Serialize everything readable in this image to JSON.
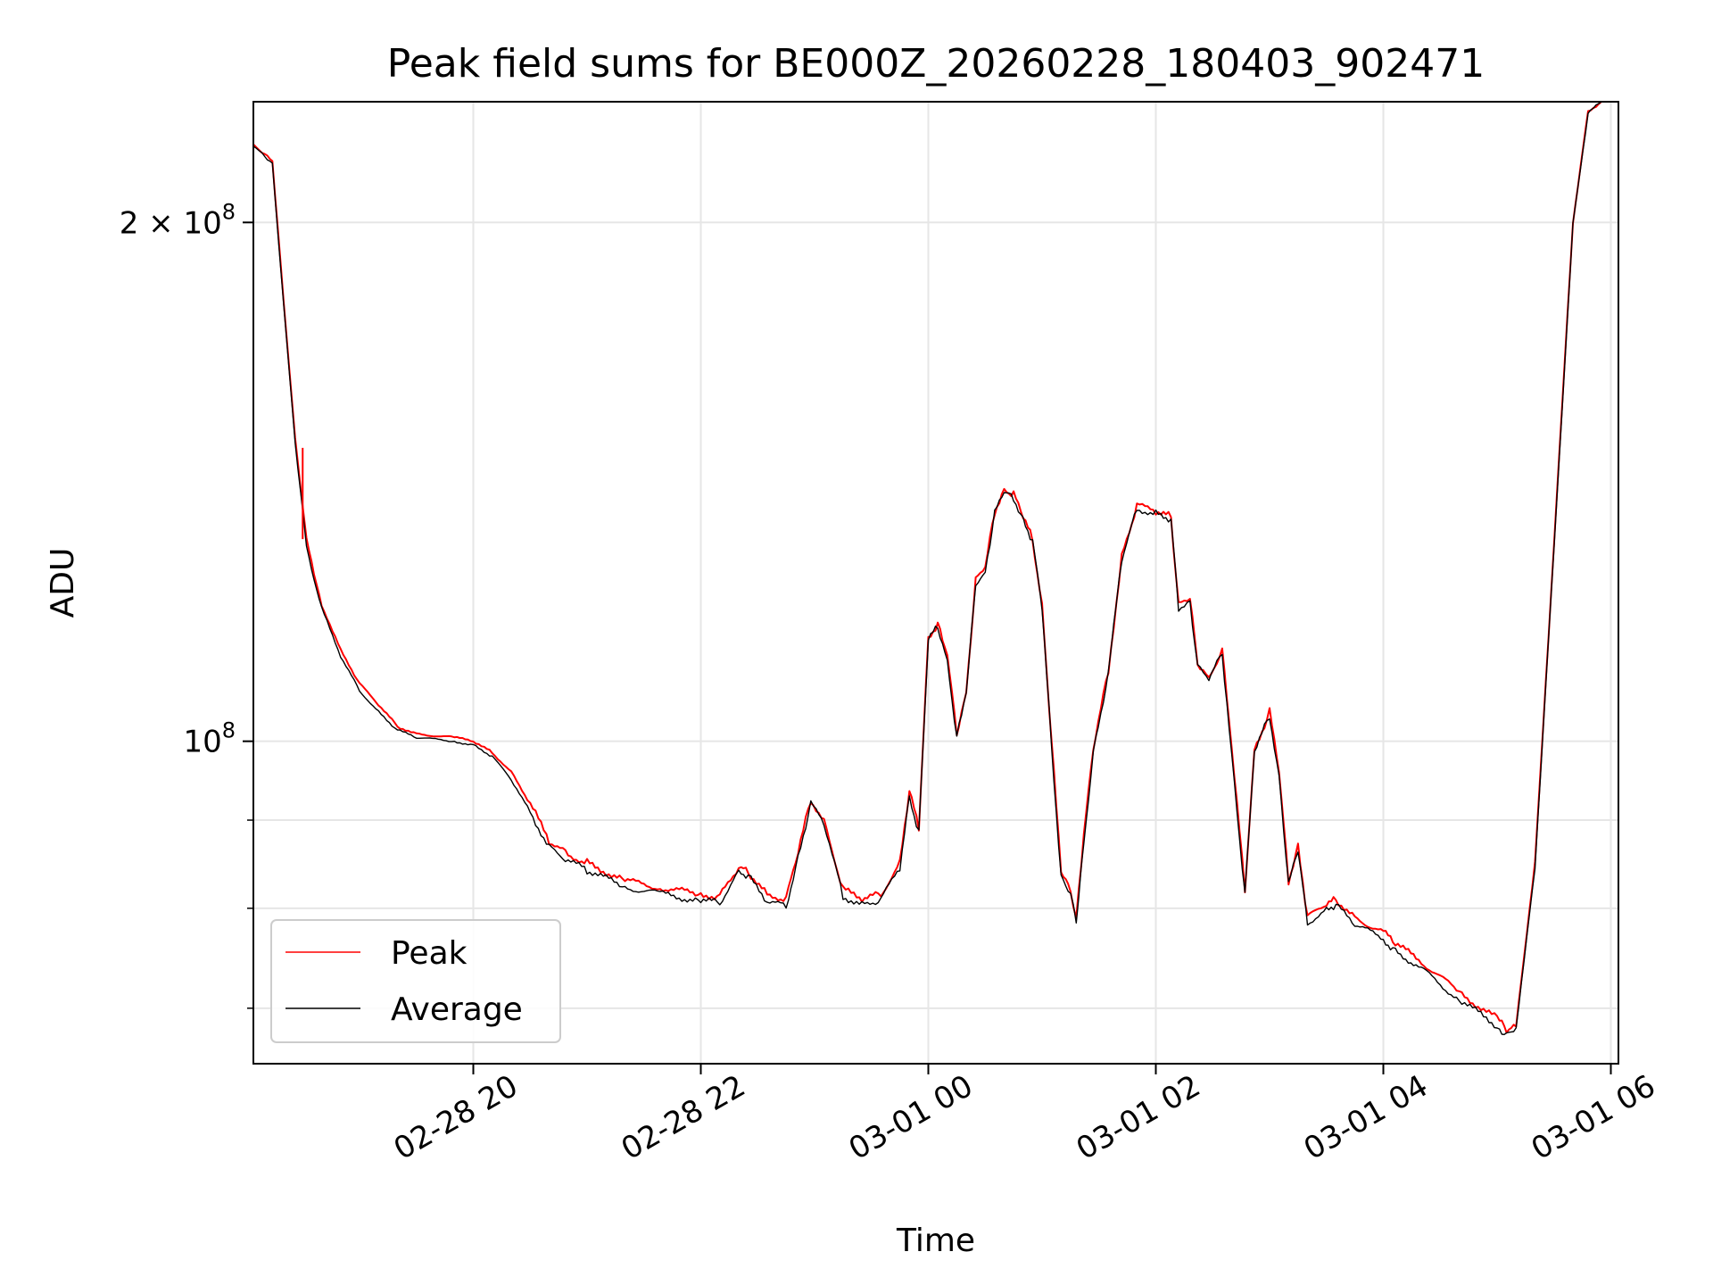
{
  "chart_data": {
    "type": "line",
    "title": "Peak field sums for BE000Z_20260228_180403_902471",
    "xlabel": "Time",
    "ylabel": "ADU",
    "xlim": [
      "2026-02-28 18:04",
      "2026-03-01 06:04"
    ],
    "ylim": [
      65000000,
      235000000
    ],
    "y_scale": "log",
    "grid": true,
    "legend_position": "lower-left",
    "x_ticks": [
      {
        "value": "2026-02-28 20:00",
        "label": "02-28 20"
      },
      {
        "value": "2026-02-28 22:00",
        "label": "02-28 22"
      },
      {
        "value": "2026-03-01 00:00",
        "label": "03-01 00"
      },
      {
        "value": "2026-03-01 02:00",
        "label": "03-01 02"
      },
      {
        "value": "2026-03-01 04:00",
        "label": "03-01 04"
      },
      {
        "value": "2026-03-01 06:00",
        "label": "03-01 06"
      }
    ],
    "y_ticks_major": [
      {
        "value": 100000000,
        "label_base": "10",
        "label_exp": "8",
        "label_mult": ""
      },
      {
        "value": 200000000,
        "label_base": "10",
        "label_exp": "8",
        "label_mult": "2 × "
      }
    ],
    "y_ticks_minor": [
      70000000,
      80000000,
      90000000
    ],
    "series": [
      {
        "name": "Peak",
        "color": "#ff0000",
        "points": [
          [
            "2026-02-28 18:04",
            222000000
          ],
          [
            "2026-02-28 18:10",
            219000000
          ],
          [
            "2026-02-28 18:14",
            217000000
          ],
          [
            "2026-02-28 18:20",
            180000000
          ],
          [
            "2026-02-28 18:26",
            150000000
          ],
          [
            "2026-02-28 18:32",
            131000000
          ],
          [
            "2026-02-28 18:36",
            125000000
          ],
          [
            "2026-02-28 18:40",
            120000000
          ],
          [
            "2026-02-28 18:50",
            113000000
          ],
          [
            "2026-02-28 19:00",
            108000000
          ],
          [
            "2026-02-28 19:10",
            105000000
          ],
          [
            "2026-02-28 19:20",
            102000000
          ],
          [
            "2026-02-28 19:30",
            101000000
          ],
          [
            "2026-02-28 19:50",
            100500000
          ],
          [
            "2026-02-28 20:00",
            100000000
          ],
          [
            "2026-02-28 20:10",
            98500000
          ],
          [
            "2026-02-28 20:20",
            96000000
          ],
          [
            "2026-02-28 20:30",
            92000000
          ],
          [
            "2026-02-28 20:40",
            87500000
          ],
          [
            "2026-02-28 20:50",
            86000000
          ],
          [
            "2026-02-28 21:00",
            85000000
          ],
          [
            "2026-02-28 21:20",
            83000000
          ],
          [
            "2026-02-28 21:40",
            82200000
          ],
          [
            "2026-02-28 22:00",
            81500000
          ],
          [
            "2026-02-28 22:10",
            81300000
          ],
          [
            "2026-02-28 22:20",
            84500000
          ],
          [
            "2026-02-28 22:25",
            84000000
          ],
          [
            "2026-02-28 22:35",
            81500000
          ],
          [
            "2026-02-28 22:45",
            81000000
          ],
          [
            "2026-02-28 22:50",
            85000000
          ],
          [
            "2026-02-28 22:58",
            92500000
          ],
          [
            "2026-02-28 23:05",
            90000000
          ],
          [
            "2026-02-28 23:15",
            82000000
          ],
          [
            "2026-02-28 23:25",
            81000000
          ],
          [
            "2026-02-28 23:35",
            81500000
          ],
          [
            "2026-02-28 23:45",
            85000000
          ],
          [
            "2026-02-28 23:50",
            93500000
          ],
          [
            "2026-02-28 23:55",
            89000000
          ],
          [
            "2026-03-01 00:00",
            115000000
          ],
          [
            "2026-03-01 00:05",
            117000000
          ],
          [
            "2026-03-01 00:10",
            112000000
          ],
          [
            "2026-03-01 00:15",
            101000000
          ],
          [
            "2026-03-01 00:20",
            107000000
          ],
          [
            "2026-03-01 00:25",
            124000000
          ],
          [
            "2026-03-01 00:30",
            126000000
          ],
          [
            "2026-03-01 00:35",
            136000000
          ],
          [
            "2026-03-01 00:40",
            140000000
          ],
          [
            "2026-03-01 00:45",
            139000000
          ],
          [
            "2026-03-01 00:50",
            135000000
          ],
          [
            "2026-03-01 00:55",
            131000000
          ],
          [
            "2026-03-01 01:00",
            120000000
          ],
          [
            "2026-03-01 01:05",
            100000000
          ],
          [
            "2026-03-01 01:10",
            84000000
          ],
          [
            "2026-03-01 01:15",
            82000000
          ],
          [
            "2026-03-01 01:18",
            79000000
          ],
          [
            "2026-03-01 01:22",
            88000000
          ],
          [
            "2026-03-01 01:27",
            99000000
          ],
          [
            "2026-03-01 01:35",
            110000000
          ],
          [
            "2026-03-01 01:42",
            128000000
          ],
          [
            "2026-03-01 01:50",
            137000000
          ],
          [
            "2026-03-01 02:00",
            136000000
          ],
          [
            "2026-03-01 02:08",
            135000000
          ],
          [
            "2026-03-01 02:12",
            120000000
          ],
          [
            "2026-03-01 02:18",
            121000000
          ],
          [
            "2026-03-01 02:22",
            111000000
          ],
          [
            "2026-03-01 02:28",
            109000000
          ],
          [
            "2026-03-01 02:35",
            113000000
          ],
          [
            "2026-03-01 02:40",
            99000000
          ],
          [
            "2026-03-01 02:47",
            82000000
          ],
          [
            "2026-03-01 02:52",
            99000000
          ],
          [
            "2026-03-01 03:00",
            104000000
          ],
          [
            "2026-03-01 03:05",
            96000000
          ],
          [
            "2026-03-01 03:10",
            83000000
          ],
          [
            "2026-03-01 03:15",
            87000000
          ],
          [
            "2026-03-01 03:20",
            79000000
          ],
          [
            "2026-03-01 03:30",
            80500000
          ],
          [
            "2026-03-01 03:35",
            81000000
          ],
          [
            "2026-03-01 03:45",
            79000000
          ],
          [
            "2026-03-01 04:00",
            77500000
          ],
          [
            "2026-03-01 04:05",
            76500000
          ],
          [
            "2026-03-01 04:20",
            74500000
          ],
          [
            "2026-03-01 04:40",
            71500000
          ],
          [
            "2026-03-01 05:00",
            69000000
          ],
          [
            "2026-03-01 05:05",
            68000000
          ],
          [
            "2026-03-01 05:10",
            68500000
          ],
          [
            "2026-03-01 05:20",
            85000000
          ],
          [
            "2026-03-01 05:30",
            130000000
          ],
          [
            "2026-03-01 05:40",
            200000000
          ],
          [
            "2026-03-01 05:48",
            232000000
          ],
          [
            "2026-03-01 05:55",
            235000000
          ]
        ]
      },
      {
        "name": "Average",
        "color": "#000000",
        "points": [
          [
            "2026-02-28 18:04",
            221500000
          ],
          [
            "2026-02-28 18:10",
            218500000
          ],
          [
            "2026-02-28 18:14",
            216500000
          ],
          [
            "2026-02-28 18:20",
            179000000
          ],
          [
            "2026-02-28 18:26",
            149000000
          ],
          [
            "2026-02-28 18:32",
            130000000
          ],
          [
            "2026-02-28 18:36",
            124000000
          ],
          [
            "2026-02-28 18:40",
            119500000
          ],
          [
            "2026-02-28 18:50",
            112000000
          ],
          [
            "2026-02-28 19:00",
            107000000
          ],
          [
            "2026-02-28 19:10",
            104000000
          ],
          [
            "2026-02-28 19:20",
            101500000
          ],
          [
            "2026-02-28 19:30",
            100500000
          ],
          [
            "2026-02-28 19:50",
            100000000
          ],
          [
            "2026-02-28 20:00",
            99500000
          ],
          [
            "2026-02-28 20:10",
            98000000
          ],
          [
            "2026-02-28 20:20",
            95000000
          ],
          [
            "2026-02-28 20:30",
            91000000
          ],
          [
            "2026-02-28 20:40",
            86800000
          ],
          [
            "2026-02-28 20:50",
            85200000
          ],
          [
            "2026-02-28 21:00",
            84200000
          ],
          [
            "2026-02-28 21:20",
            82300000
          ],
          [
            "2026-02-28 21:40",
            81500000
          ],
          [
            "2026-02-28 22:00",
            80800000
          ],
          [
            "2026-02-28 22:10",
            80600000
          ],
          [
            "2026-02-28 22:20",
            84000000
          ],
          [
            "2026-02-28 22:25",
            83500000
          ],
          [
            "2026-02-28 22:35",
            80700000
          ],
          [
            "2026-02-28 22:45",
            80200000
          ],
          [
            "2026-02-28 22:50",
            84500000
          ],
          [
            "2026-02-28 22:58",
            92000000
          ],
          [
            "2026-02-28 23:05",
            89500000
          ],
          [
            "2026-02-28 23:15",
            81300000
          ],
          [
            "2026-02-28 23:25",
            80400000
          ],
          [
            "2026-02-28 23:35",
            80900000
          ],
          [
            "2026-02-28 23:45",
            84500000
          ],
          [
            "2026-02-28 23:50",
            93000000
          ],
          [
            "2026-02-28 23:55",
            88500000
          ],
          [
            "2026-03-01 00:00",
            114500000
          ],
          [
            "2026-03-01 00:05",
            116500000
          ],
          [
            "2026-03-01 00:10",
            111500000
          ],
          [
            "2026-03-01 00:15",
            100500000
          ],
          [
            "2026-03-01 00:20",
            106500000
          ],
          [
            "2026-03-01 00:25",
            123500000
          ],
          [
            "2026-03-01 00:30",
            125500000
          ],
          [
            "2026-03-01 00:35",
            135500000
          ],
          [
            "2026-03-01 00:40",
            139500000
          ],
          [
            "2026-03-01 00:45",
            138500000
          ],
          [
            "2026-03-01 00:50",
            134500000
          ],
          [
            "2026-03-01 00:55",
            130500000
          ],
          [
            "2026-03-01 01:00",
            119500000
          ],
          [
            "2026-03-01 01:05",
            99500000
          ],
          [
            "2026-03-01 01:10",
            83500000
          ],
          [
            "2026-03-01 01:15",
            81500000
          ],
          [
            "2026-03-01 01:18",
            78500000
          ],
          [
            "2026-03-01 01:22",
            87500000
          ],
          [
            "2026-03-01 01:27",
            98500000
          ],
          [
            "2026-03-01 01:35",
            109500000
          ],
          [
            "2026-03-01 01:42",
            127500000
          ],
          [
            "2026-03-01 01:50",
            136500000
          ],
          [
            "2026-03-01 02:00",
            135500000
          ],
          [
            "2026-03-01 02:08",
            134500000
          ],
          [
            "2026-03-01 02:12",
            119500000
          ],
          [
            "2026-03-01 02:18",
            120500000
          ],
          [
            "2026-03-01 02:22",
            110500000
          ],
          [
            "2026-03-01 02:28",
            108500000
          ],
          [
            "2026-03-01 02:35",
            112500000
          ],
          [
            "2026-03-01 02:40",
            98500000
          ],
          [
            "2026-03-01 02:47",
            81500000
          ],
          [
            "2026-03-01 02:52",
            98500000
          ],
          [
            "2026-03-01 03:00",
            103500000
          ],
          [
            "2026-03-01 03:05",
            95500000
          ],
          [
            "2026-03-01 03:10",
            82500000
          ],
          [
            "2026-03-01 03:15",
            86500000
          ],
          [
            "2026-03-01 03:20",
            78500000
          ],
          [
            "2026-03-01 03:30",
            79800000
          ],
          [
            "2026-03-01 03:35",
            80300000
          ],
          [
            "2026-03-01 03:45",
            78300000
          ],
          [
            "2026-03-01 04:00",
            76800000
          ],
          [
            "2026-03-01 04:05",
            75800000
          ],
          [
            "2026-03-01 04:20",
            73800000
          ],
          [
            "2026-03-01 04:40",
            70800000
          ],
          [
            "2026-03-01 05:00",
            68400000
          ],
          [
            "2026-03-01 05:05",
            67500000
          ],
          [
            "2026-03-01 05:10",
            68000000
          ],
          [
            "2026-03-01 05:20",
            84500000
          ],
          [
            "2026-03-01 05:30",
            129500000
          ],
          [
            "2026-03-01 05:40",
            199500000
          ],
          [
            "2026-03-01 05:48",
            231500000
          ],
          [
            "2026-03-01 05:55",
            235000000
          ]
        ]
      }
    ],
    "annotation_spike": {
      "series": "Peak",
      "time": "2026-02-28 18:30",
      "low": 131000000,
      "high": 148000000
    }
  }
}
